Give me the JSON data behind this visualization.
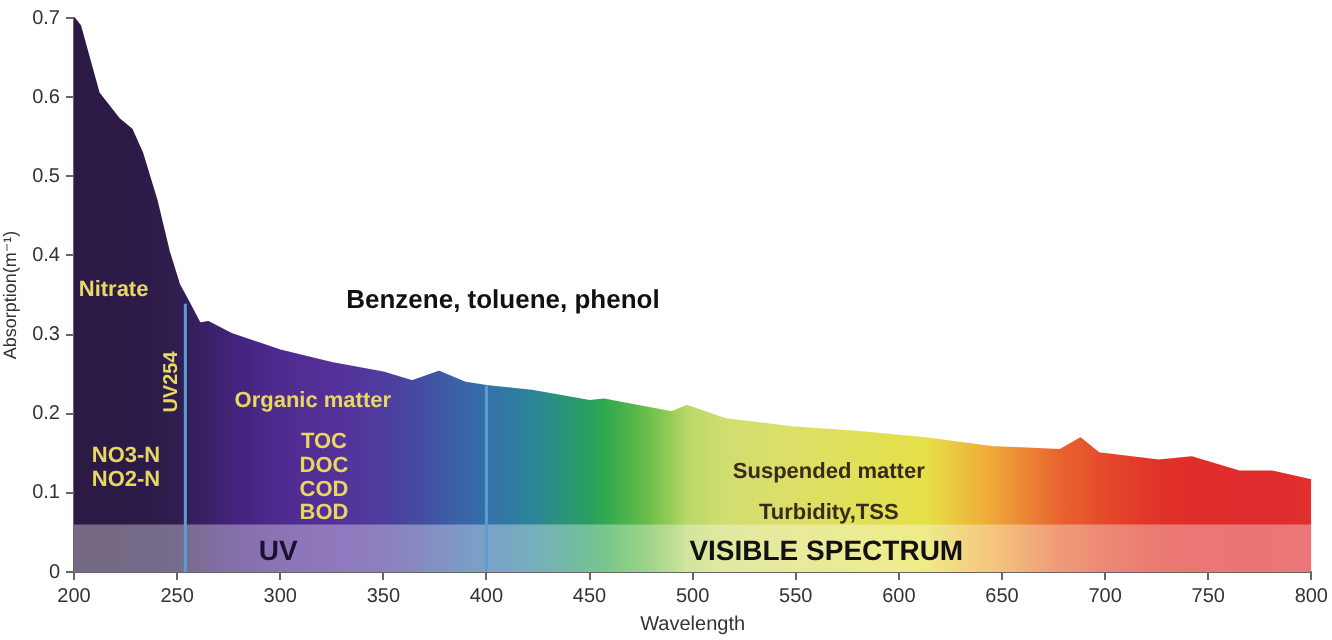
{
  "chart_data": {
    "type": "area",
    "xlabel": "Wavelength",
    "ylabel": "Absorption(m⁻¹)",
    "x": [
      200,
      203,
      212,
      222,
      228,
      233,
      240,
      246,
      251,
      256,
      261,
      265,
      277,
      300,
      325,
      350,
      364,
      377,
      390,
      400,
      422,
      450,
      457,
      473,
      490,
      497,
      516,
      548,
      581,
      613,
      645,
      678,
      688,
      697,
      726,
      742,
      765,
      781,
      800
    ],
    "values": [
      0.7,
      0.69,
      0.605,
      0.572,
      0.559,
      0.53,
      0.47,
      0.405,
      0.363,
      0.339,
      0.314,
      0.316,
      0.3,
      0.28,
      0.264,
      0.252,
      0.241,
      0.253,
      0.239,
      0.235,
      0.229,
      0.216,
      0.218,
      0.21,
      0.202,
      0.21,
      0.193,
      0.183,
      0.177,
      0.169,
      0.158,
      0.154,
      0.169,
      0.15,
      0.141,
      0.145,
      0.127,
      0.127,
      0.116
    ],
    "colors": [
      "#2b1a45",
      "#2b1a45",
      "#2b1a45",
      "#2b1a45",
      "#2c1b48",
      "#2c1b48",
      "#2d1c4a",
      "#2e1d4d",
      "#301e52",
      "#341f5a",
      "#372060",
      "#3a2166",
      "#42237a",
      "#4e2a90",
      "#55309a",
      "#4f3c9e",
      "#4848a0",
      "#4058a4",
      "#3866a8",
      "#3470a8",
      "#2c849a",
      "#28a060",
      "#30a850",
      "#58b848",
      "#98cc58",
      "#b8d868",
      "#d0de70",
      "#dcdf68",
      "#e0e058",
      "#e6e048",
      "#f0a838",
      "#e86430",
      "#e65a2c",
      "#e44c2c",
      "#e03228",
      "#e02e2a",
      "#e02c2c",
      "#e02c2c",
      "#e03030"
    ],
    "xlim": [
      200,
      800
    ],
    "xticks": [
      200,
      250,
      300,
      350,
      400,
      450,
      500,
      550,
      600,
      650,
      700,
      750,
      800
    ],
    "ylim": [
      0,
      0.7
    ],
    "yticks": [
      0,
      0.1,
      0.2,
      0.3,
      0.4,
      0.5,
      0.6,
      0.7
    ],
    "grid": false,
    "legend": false,
    "bands": [
      {
        "axis": "y",
        "from": 0,
        "to": 0.06,
        "label": null,
        "color": "#ffffff"
      }
    ],
    "ref_lines": [
      {
        "axis": "x",
        "value": 254,
        "label": "UV254",
        "color": "#5a9fd0"
      },
      {
        "axis": "x",
        "value": 400,
        "label": null,
        "color": "#5a9fd0"
      }
    ],
    "annotations": [
      "Nitrate",
      "Benzene, toluene, phenol",
      "Organic matter",
      "NO3-N",
      "NO2-N",
      "TOC",
      "DOC",
      "COD",
      "BOD",
      "Suspended matter",
      "Turbidity,TSS",
      "UV",
      "VISIBLE SPECTRUM"
    ]
  }
}
